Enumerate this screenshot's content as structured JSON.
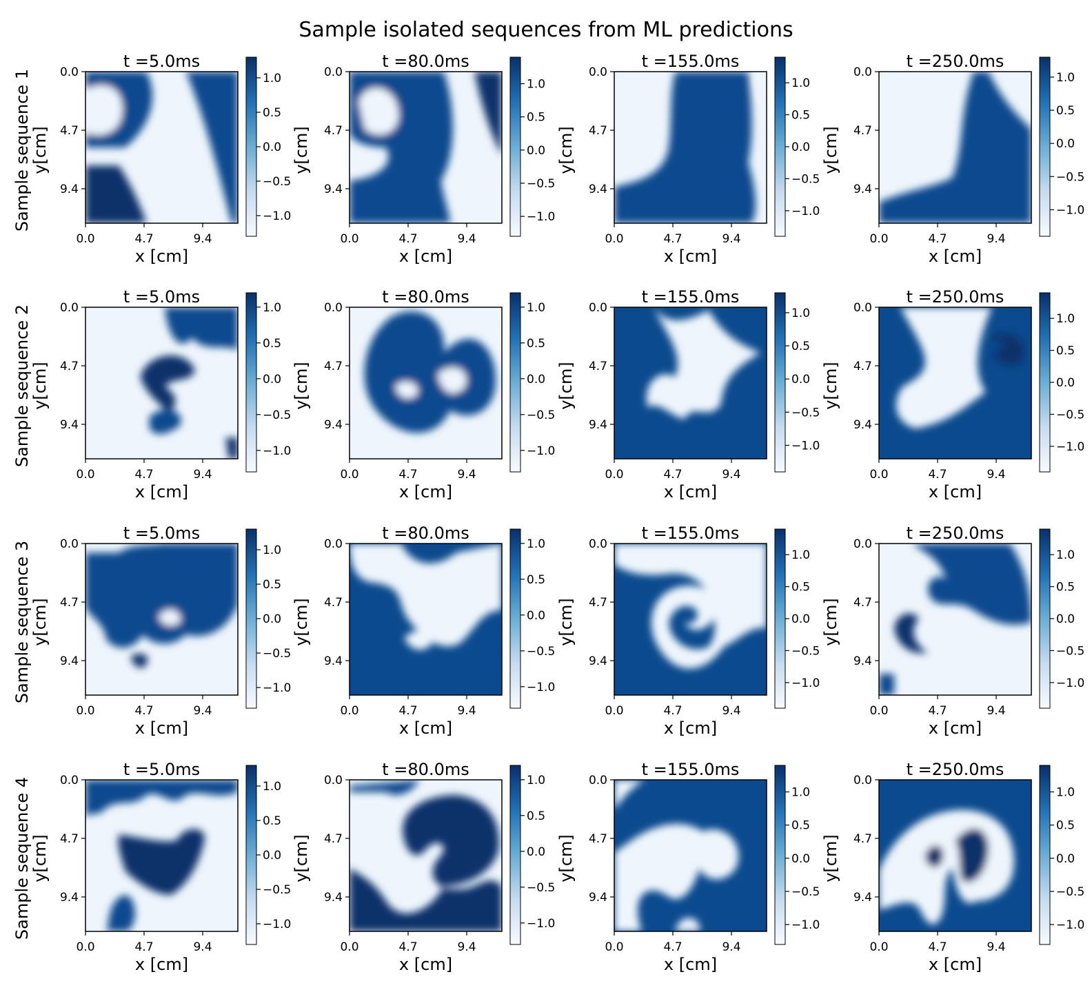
{
  "figure": {
    "title": "Sample isolated sequences from ML predictions"
  },
  "chart_data": {
    "type": "heatmap",
    "colormap": "Blues",
    "colors": {
      "low": "#f7fbff",
      "mid": "#6baed6",
      "high": "#08306b"
    },
    "xlabel": "x [cm]",
    "ylabel": "y[cm]",
    "x_ticks": [
      "0.0",
      "4.7",
      "9.4"
    ],
    "y_ticks": [
      "0.0",
      "4.7",
      "9.4"
    ],
    "colorbar_ticks": [
      "1.0",
      "0.5",
      "0.0",
      "−0.5",
      "−1.0"
    ],
    "rows": [
      {
        "label": "Sample sequence 1",
        "panels": [
          {
            "title": "t =5.0ms",
            "cbar_min": -1.3,
            "cbar_max": 1.3
          },
          {
            "title": "t =80.0ms",
            "cbar_min": -1.3,
            "cbar_max": 1.4
          },
          {
            "title": "t =155.0ms",
            "cbar_min": -1.4,
            "cbar_max": 1.4
          },
          {
            "title": "t =250.0ms",
            "cbar_min": -1.4,
            "cbar_max": 1.3
          }
        ]
      },
      {
        "label": "Sample sequence 2",
        "panels": [
          {
            "title": "t =5.0ms",
            "cbar_min": -1.3,
            "cbar_max": 1.2
          },
          {
            "title": "t =80.0ms",
            "cbar_min": -1.3,
            "cbar_max": 1.2
          },
          {
            "title": "t =155.0ms",
            "cbar_min": -1.4,
            "cbar_max": 1.3
          },
          {
            "title": "t =250.0ms",
            "cbar_min": -1.4,
            "cbar_max": 1.4
          }
        ]
      },
      {
        "label": "Sample sequence 3",
        "panels": [
          {
            "title": "t =5.0ms",
            "cbar_min": -1.3,
            "cbar_max": 1.3
          },
          {
            "title": "t =80.0ms",
            "cbar_min": -1.3,
            "cbar_max": 1.2
          },
          {
            "title": "t =155.0ms",
            "cbar_min": -1.4,
            "cbar_max": 1.4
          },
          {
            "title": "t =250.0ms",
            "cbar_min": -1.4,
            "cbar_max": 1.4
          }
        ]
      },
      {
        "label": "Sample sequence 4",
        "panels": [
          {
            "title": "t =5.0ms",
            "cbar_min": -1.3,
            "cbar_max": 1.3
          },
          {
            "title": "t =80.0ms",
            "cbar_min": -1.3,
            "cbar_max": 1.2
          },
          {
            "title": "t =155.0ms",
            "cbar_min": -1.3,
            "cbar_max": 1.4
          },
          {
            "title": "t =250.0ms",
            "cbar_min": -1.3,
            "cbar_max": 1.4
          }
        ]
      }
    ]
  }
}
